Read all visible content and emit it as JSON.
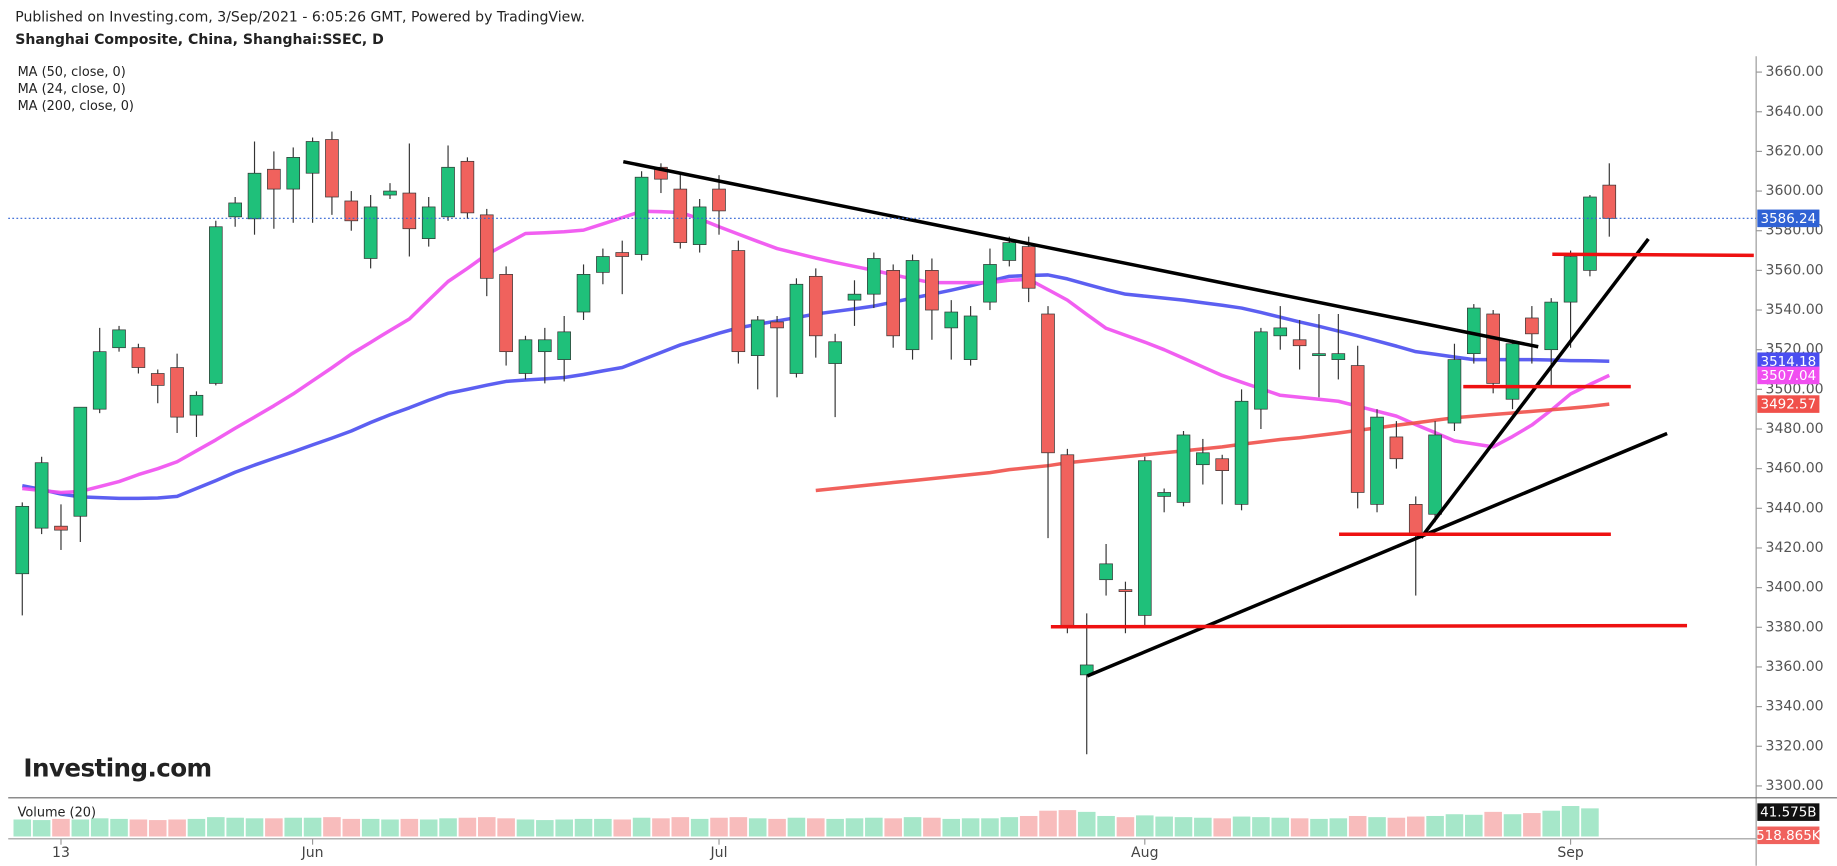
{
  "header": {
    "published": "Published on Investing.com, 3/Sep/2021 - 6:05:26 GMT, Powered by TradingView.",
    "symbol": "Shanghai Composite, China, Shanghai:SSEC, D"
  },
  "chart_data": {
    "type": "candlestick",
    "categories": [
      null,
      null,
      "13",
      null,
      null,
      null,
      null,
      null,
      null,
      null,
      null,
      null,
      null,
      null,
      null,
      "Jun",
      null,
      null,
      null,
      null,
      null,
      null,
      null,
      null,
      null,
      null,
      null,
      null,
      null,
      null,
      null,
      null,
      null,
      null,
      null,
      null,
      "Jul",
      null,
      null,
      null,
      null,
      null,
      null,
      null,
      null,
      null,
      null,
      null,
      null,
      null,
      null,
      null,
      null,
      null,
      null,
      null,
      null,
      null,
      "Aug",
      null,
      null,
      null,
      null,
      null,
      null,
      null,
      null,
      null,
      null,
      null,
      null,
      null,
      null,
      null,
      null,
      null,
      null,
      null,
      null,
      null,
      "Sep",
      null,
      null
    ],
    "open": [
      3407,
      3430,
      3431,
      3436,
      3490,
      3521,
      3521,
      3508,
      3511,
      3487,
      3503,
      3587,
      3586,
      3611,
      3601,
      3609,
      3626,
      3595,
      3566,
      3598,
      3599,
      3576,
      3587,
      3615,
      3588,
      3558,
      3508,
      3519,
      3515,
      3539,
      3559,
      3569,
      3568,
      3612,
      3601,
      3573,
      3601,
      3570,
      3517,
      3534,
      3508,
      3557,
      3513,
      3545,
      3548,
      3560,
      3520,
      3560,
      3531,
      3515,
      3544,
      3565,
      3572,
      3538,
      3467,
      3356,
      3404,
      3399,
      3386,
      3446,
      3443,
      3462,
      3465,
      3442,
      3490,
      3527,
      3525,
      3517,
      3515,
      3512,
      3442,
      3476,
      3442,
      3437,
      3483,
      3518,
      3538,
      3495,
      3536,
      3520,
      3544,
      3560,
      3603
    ],
    "high": [
      3443,
      3466,
      3442,
      3491,
      3531,
      3532,
      3523,
      3510,
      3518,
      3499,
      3585,
      3597,
      3625,
      3620,
      3622,
      3627,
      3630,
      3600,
      3598,
      3604,
      3624,
      3597,
      3623,
      3617,
      3591,
      3562,
      3527,
      3531,
      3537,
      3563,
      3571,
      3575,
      3610,
      3614,
      3609,
      3596,
      3608,
      3575,
      3537,
      3537,
      3556,
      3561,
      3528,
      3555,
      3569,
      3563,
      3568,
      3566,
      3545,
      3542,
      3571,
      3577,
      3577,
      3542,
      3470,
      3387,
      3422,
      3403,
      3466,
      3450,
      3479,
      3475,
      3467,
      3500,
      3531,
      3542,
      3535,
      3538,
      3538,
      3522,
      3490,
      3484,
      3446,
      3484,
      3523,
      3543,
      3540,
      3525,
      3542,
      3546,
      3570,
      3598,
      3614
    ],
    "low": [
      3386,
      3427,
      3419,
      3423,
      3488,
      3519,
      3508,
      3493,
      3478,
      3476,
      3502,
      3582,
      3578,
      3581,
      3584,
      3584,
      3588,
      3580,
      3561,
      3596,
      3567,
      3572,
      3585,
      3586,
      3547,
      3512,
      3505,
      3503,
      3504,
      3535,
      3553,
      3548,
      3565,
      3599,
      3571,
      3569,
      3578,
      3513,
      3500,
      3496,
      3506,
      3516,
      3486,
      3532,
      3541,
      3521,
      3515,
      3525,
      3515,
      3512,
      3540,
      3562,
      3544,
      3425,
      3377,
      3316,
      3396,
      3377,
      3380,
      3438,
      3441,
      3452,
      3442,
      3439,
      3480,
      3520,
      3510,
      3496,
      3505,
      3440,
      3438,
      3460,
      3396,
      3433,
      3479,
      3513,
      3498,
      3490,
      3513,
      3502,
      3521,
      3557,
      3577
    ],
    "close": [
      3441,
      3463,
      3429,
      3491,
      3519,
      3530,
      3511,
      3502,
      3486,
      3497,
      3582,
      3594,
      3609,
      3601,
      3617,
      3625,
      3597,
      3585,
      3592,
      3600,
      3581,
      3592,
      3612,
      3589,
      3556,
      3519,
      3525,
      3525,
      3529,
      3558,
      3567,
      3567,
      3607,
      3606,
      3574,
      3592,
      3590,
      3519,
      3535,
      3531,
      3553,
      3527,
      3524,
      3548,
      3566,
      3527,
      3565,
      3540,
      3539,
      3537,
      3563,
      3574,
      3551,
      3468,
      3381,
      3361,
      3412,
      3398,
      3464,
      3448,
      3477,
      3468,
      3459,
      3494,
      3529,
      3531,
      3522,
      3518,
      3518,
      3448,
      3486,
      3465,
      3427,
      3477,
      3515,
      3541,
      3503,
      3523,
      3528,
      3544,
      3567,
      3597,
      3586.24
    ],
    "up_color": "#1fc07a",
    "down_color": "#f0625d",
    "last_price_line": true,
    "last_price_color": "#2f62d4",
    "grid": false,
    "ylim": [
      3294,
      3668
    ],
    "yticks": [
      {
        "value": 3300,
        "label": "3300.00"
      },
      {
        "value": 3320,
        "label": "3320.00"
      },
      {
        "value": 3340,
        "label": "3340.00"
      },
      {
        "value": 3360,
        "label": "3360.00"
      },
      {
        "value": 3380,
        "label": "3380.00"
      },
      {
        "value": 3400,
        "label": "3400.00"
      },
      {
        "value": 3420,
        "label": "3420.00"
      },
      {
        "value": 3440,
        "label": "3440.00"
      },
      {
        "value": 3460,
        "label": "3460.00"
      },
      {
        "value": 3480,
        "label": "3480.00"
      },
      {
        "value": 3500,
        "label": "3500.00"
      },
      {
        "value": 3520,
        "label": "3520.00"
      },
      {
        "value": 3540,
        "label": "3540.00"
      },
      {
        "value": 3560,
        "label": "3560.00"
      },
      {
        "value": 3580,
        "label": "3580.00"
      },
      {
        "value": 3600,
        "label": "3600.00"
      },
      {
        "value": 3620,
        "label": "3620.00"
      },
      {
        "value": 3640,
        "label": "3640.00"
      },
      {
        "value": 3660,
        "label": "3660.00"
      }
    ],
    "overlays": [
      {
        "name": "MA (50, close, 0)",
        "color": "#4a4ef0",
        "values": [
          3451.4,
          3449.5,
          3447.2,
          3445.8,
          3445.4,
          3445,
          3445,
          3445.2,
          3446,
          3450,
          3454,
          3458.2,
          3461.8,
          3465.2,
          3468.5,
          3472,
          3475.4,
          3479,
          3483.3,
          3487.2,
          3490.7,
          3494.5,
          3498,
          3500,
          3502.1,
          3504,
          3504.7,
          3505.3,
          3506,
          3507.5,
          3509.3,
          3511,
          3514.8,
          3518.6,
          3522.4,
          3525.3,
          3528.3,
          3531,
          3532.8,
          3534.5,
          3536.2,
          3538,
          3539.3,
          3540.6,
          3542,
          3544,
          3546,
          3548,
          3550,
          3552.2,
          3554.6,
          3557,
          3557.4,
          3557.7,
          3555.7,
          3553,
          3550.3,
          3548,
          3547,
          3546,
          3545,
          3543.7,
          3542.4,
          3541,
          3538.8,
          3536.4,
          3534,
          3531.8,
          3529.4,
          3527,
          3524.4,
          3521.8,
          3519,
          3517.7,
          3516.3,
          3515,
          3515,
          3515,
          3515,
          3514.8,
          3514.5,
          3514.4,
          3514.18
        ]
      },
      {
        "name": "MA (24, close, 0)",
        "color": "#f04ef0",
        "values": [
          3450,
          3449,
          3448,
          3448.5,
          3451,
          3453.5,
          3457,
          3460,
          3463.5,
          3469,
          3474.5,
          3480.4,
          3486,
          3491.7,
          3497.7,
          3504.3,
          3510.9,
          3517.8,
          3523.7,
          3529.7,
          3535.5,
          3545,
          3554.4,
          3561,
          3568,
          3573.3,
          3578.6,
          3579,
          3579.5,
          3580.3,
          3583.4,
          3586.6,
          3589.8,
          3589.6,
          3589.2,
          3586,
          3582,
          3578.3,
          3574.6,
          3571,
          3568.6,
          3566.2,
          3564,
          3562,
          3560,
          3557.8,
          3555.7,
          3553.8,
          3553.8,
          3553.8,
          3553.8,
          3555,
          3555.5,
          3550.3,
          3545,
          3537.8,
          3530.8,
          3527.3,
          3523.8,
          3520,
          3515.7,
          3511.3,
          3507,
          3503.6,
          3500.3,
          3497,
          3496,
          3495,
          3494,
          3491.5,
          3489,
          3486.5,
          3482.2,
          3478.2,
          3474,
          3472.5,
          3471,
          3476.2,
          3482,
          3489.5,
          3497.7,
          3502.5,
          3507.04
        ]
      },
      {
        "name": "MA (200, close, 0)",
        "color": "#f0504a",
        "values": [
          null,
          null,
          null,
          null,
          null,
          null,
          null,
          null,
          null,
          null,
          null,
          null,
          null,
          null,
          null,
          null,
          null,
          null,
          null,
          null,
          null,
          null,
          null,
          null,
          null,
          null,
          null,
          null,
          null,
          null,
          null,
          null,
          null,
          null,
          null,
          null,
          null,
          null,
          null,
          null,
          null,
          3449,
          3450,
          3451,
          3452,
          3453,
          3454,
          3455,
          3456,
          3457,
          3458,
          3459.5,
          3460.5,
          3461.5,
          3463,
          3464,
          3465,
          3466,
          3467,
          3468,
          3469,
          3470,
          3471,
          3472.3,
          3473.5,
          3474.7,
          3475.6,
          3476.8,
          3478,
          3479.3,
          3480.6,
          3481.9,
          3483.1,
          3484.4,
          3485.7,
          3486.5,
          3487.3,
          3488.1,
          3488.9,
          3489.7,
          3490.5,
          3491.4,
          3492.57
        ]
      }
    ],
    "volume": {
      "name": "Volume (20)",
      "ylim": [
        0,
        60
      ],
      "up_color": "#a6e7c9",
      "down_color": "#f8bcbc",
      "values": [
        29,
        28,
        30,
        29,
        31,
        30,
        29,
        28,
        29,
        30,
        33,
        32,
        31,
        31,
        32,
        32,
        33,
        30,
        30,
        29,
        30,
        29,
        31,
        32,
        33,
        31,
        29,
        28,
        29,
        30,
        30,
        29,
        32,
        31,
        33,
        30,
        32,
        33,
        31,
        30,
        32,
        31,
        30,
        31,
        32,
        31,
        33,
        32,
        30,
        31,
        31,
        33,
        35,
        44,
        45,
        42,
        35,
        33,
        36,
        34,
        33,
        32,
        31,
        34,
        33,
        32,
        31,
        30,
        31,
        35,
        33,
        32,
        34,
        35,
        38,
        37,
        42,
        38,
        40,
        44,
        52,
        48,
        0.000518865
      ],
      "last_label": "518.865K",
      "ma": 41.575,
      "ma_label": "41.575B"
    },
    "logo": "Investing.com"
  }
}
